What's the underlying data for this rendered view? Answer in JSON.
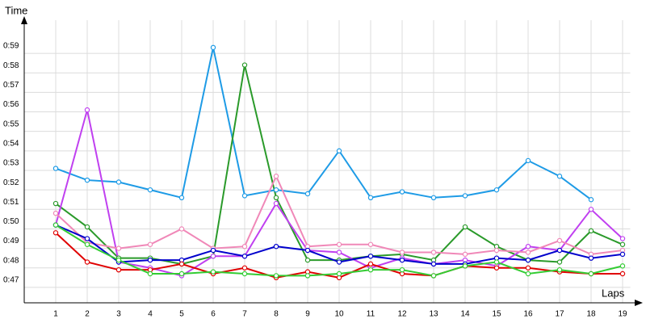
{
  "chart_data": {
    "type": "line",
    "y_label": "Time",
    "x_label": "Laps",
    "xlim": [
      0,
      19.5
    ],
    "ylim": [
      46.21,
      60.7
    ],
    "xticks": [
      1,
      2,
      3,
      4,
      5,
      6,
      7,
      8,
      9,
      10,
      11,
      12,
      13,
      14,
      15,
      16,
      17,
      18,
      19
    ],
    "yticks": [
      {
        "value": 47,
        "label": "0:47"
      },
      {
        "value": 48,
        "label": "0:48"
      },
      {
        "value": 49,
        "label": "0:49"
      },
      {
        "value": 50,
        "label": "0:50"
      },
      {
        "value": 51,
        "label": "0:51"
      },
      {
        "value": 52,
        "label": "0:52"
      },
      {
        "value": 53,
        "label": "0:53"
      },
      {
        "value": 54,
        "label": "0:54"
      },
      {
        "value": 55,
        "label": "0:55"
      },
      {
        "value": 56,
        "label": "0:56"
      },
      {
        "value": 57,
        "label": "0:57"
      },
      {
        "value": 58,
        "label": "0:58"
      },
      {
        "value": 59,
        "label": "0:59"
      }
    ],
    "grid": true,
    "x": [
      1,
      2,
      3,
      4,
      5,
      6,
      7,
      8,
      9,
      10,
      11,
      12,
      13,
      14,
      15,
      16,
      17,
      18,
      19
    ],
    "series": [
      {
        "color": "#1e9be6",
        "values": [
          53.1,
          52.5,
          52.4,
          52.0,
          51.6,
          59.3,
          51.7,
          52.0,
          51.8,
          54.0,
          51.6,
          51.9,
          51.6,
          51.7,
          52.0,
          53.5,
          52.7,
          51.5,
          null
        ]
      },
      {
        "color": "#2a9a2a",
        "values": [
          51.3,
          50.1,
          48.5,
          48.5,
          48.2,
          48.6,
          58.4,
          51.6,
          48.4,
          48.4,
          48.6,
          48.7,
          48.4,
          50.1,
          49.1,
          48.4,
          48.3,
          49.9,
          49.2
        ]
      },
      {
        "color": "#c040f0",
        "values": [
          50.2,
          56.1,
          48.3,
          48.0,
          47.6,
          48.6,
          48.6,
          51.3,
          48.9,
          48.8,
          48.0,
          48.5,
          48.2,
          48.4,
          48.1,
          49.1,
          48.9,
          51.0,
          49.5
        ]
      },
      {
        "color": "#f088b8",
        "values": [
          50.8,
          49.3,
          49.0,
          49.2,
          50.0,
          49.0,
          49.1,
          52.7,
          49.1,
          49.2,
          49.2,
          48.8,
          48.8,
          48.7,
          48.9,
          48.8,
          49.4,
          48.7,
          48.9
        ]
      },
      {
        "color": "#0000cc",
        "values": [
          50.2,
          49.5,
          48.3,
          48.4,
          48.4,
          48.9,
          48.6,
          49.1,
          48.9,
          48.3,
          48.6,
          48.4,
          48.2,
          48.2,
          48.5,
          48.4,
          48.9,
          48.5,
          48.7
        ]
      },
      {
        "color": "#e00000",
        "values": [
          49.8,
          48.3,
          47.9,
          47.9,
          48.2,
          47.7,
          48.0,
          47.5,
          47.8,
          47.5,
          48.2,
          47.7,
          47.6,
          48.1,
          48.0,
          48.0,
          47.8,
          47.7,
          47.7
        ]
      },
      {
        "color": "#33cc33",
        "values": [
          50.2,
          49.2,
          48.4,
          47.7,
          47.7,
          47.8,
          47.7,
          47.6,
          47.6,
          47.7,
          47.9,
          47.9,
          47.6,
          48.1,
          48.3,
          47.7,
          47.9,
          47.7,
          48.1
        ]
      }
    ]
  }
}
